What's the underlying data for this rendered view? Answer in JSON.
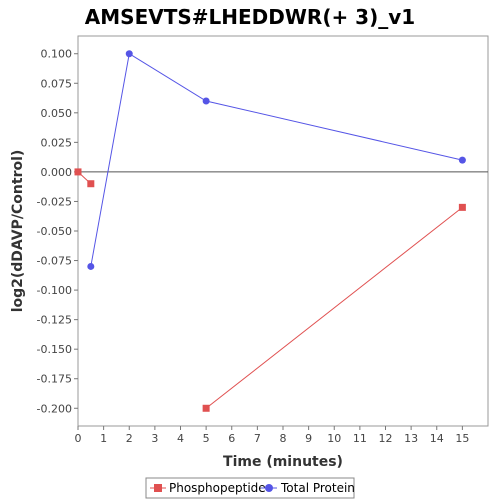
{
  "chart_data": {
    "type": "line",
    "title": "AMSEVTS#LHEDDWR(+ 3)_v1",
    "xlabel": "Time (minutes)",
    "ylabel": "log2(dDAVP/Control)",
    "xlim": [
      0,
      16
    ],
    "ylim": [
      -0.215,
      0.115
    ],
    "x_ticks": [
      0,
      1,
      2,
      3,
      4,
      5,
      6,
      7,
      8,
      9,
      10,
      11,
      12,
      13,
      14,
      15
    ],
    "y_ticks": [
      -0.2,
      -0.175,
      -0.15,
      -0.125,
      -0.1,
      -0.075,
      -0.05,
      -0.025,
      0,
      0.025,
      0.05,
      0.075,
      0.1
    ],
    "y_tick_labels": [
      "-0.200",
      "-0.175",
      "-0.150",
      "-0.125",
      "-0.100",
      "-0.075",
      "-0.050",
      "-0.025",
      "0.000",
      "0.025",
      "0.050",
      "0.075",
      "0.100"
    ],
    "zero_line": true,
    "grid": false,
    "legend_position": "bottom",
    "series": [
      {
        "name": "Phosphopeptide",
        "color": "#e05050",
        "marker": "square",
        "segments": [
          [
            [
              0,
              0.0
            ],
            [
              0.5,
              -0.01
            ]
          ],
          [
            [
              5,
              -0.2
            ],
            [
              15,
              -0.03
            ]
          ]
        ]
      },
      {
        "name": "Total Protein",
        "color": "#5555e6",
        "marker": "circle",
        "segments": [
          [
            [
              0.5,
              -0.08
            ],
            [
              2,
              0.1
            ],
            [
              5,
              0.06
            ],
            [
              15,
              0.01
            ]
          ]
        ]
      }
    ]
  }
}
